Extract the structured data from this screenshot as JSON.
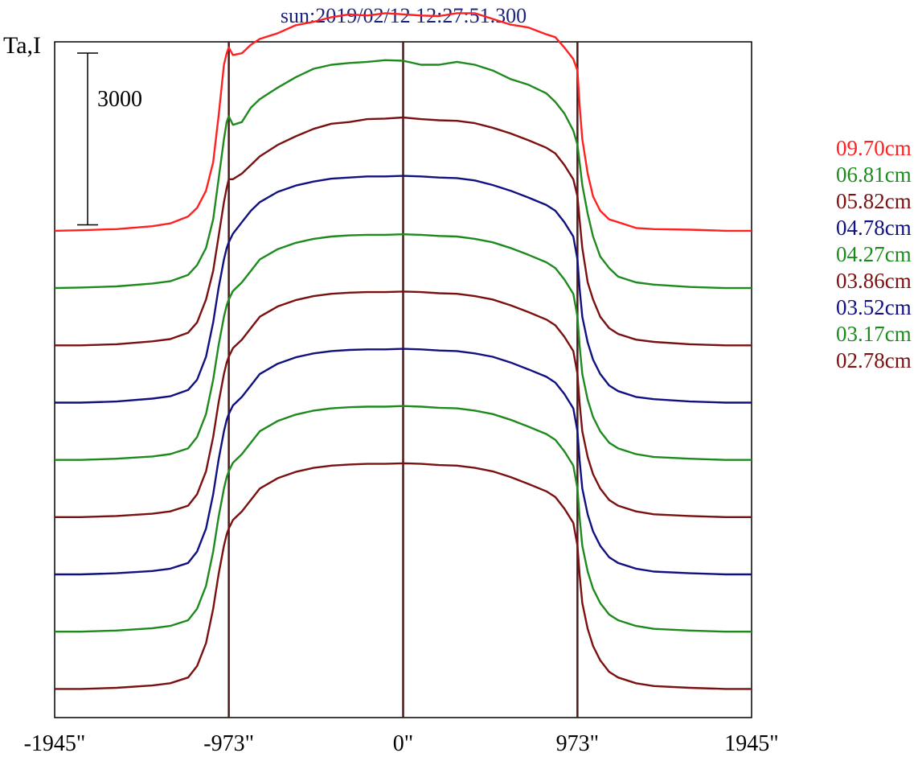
{
  "chart_data": {
    "type": "line",
    "title": "sun:2019/02/12 12:27:51.300",
    "ylabel": "Ta,I",
    "xlabel": "",
    "x_ticks": [
      "-1945\"",
      "-973\"",
      "0\"",
      "973\"",
      "1945\""
    ],
    "x_tick_values": [
      -1945,
      -973,
      0,
      973,
      1945
    ],
    "xlim": [
      -1945,
      1945
    ],
    "limb_lines_at": [
      -973,
      0,
      973
    ],
    "limb_line_color": "#4a1a1a",
    "scale_bar": {
      "label": "3000",
      "value": 3000
    },
    "offset_between_series": 1000,
    "ylim": [
      -500,
      11300
    ],
    "grid": false,
    "legend_position": "right",
    "profile_x": [
      -1945,
      -1800,
      -1600,
      -1400,
      -1300,
      -1200,
      -1150,
      -1100,
      -1060,
      -1030,
      -1000,
      -985,
      -973,
      -950,
      -900,
      -850,
      -800,
      -700,
      -600,
      -500,
      -400,
      -300,
      -200,
      -100,
      0,
      100,
      200,
      300,
      400,
      500,
      600,
      700,
      800,
      850,
      900,
      950,
      973,
      985,
      1000,
      1030,
      1060,
      1100,
      1150,
      1200,
      1300,
      1400,
      1600,
      1800,
      1945
    ],
    "series": [
      {
        "name": "09.70cm",
        "color": "#ff2020",
        "values": [
          8000,
          8010,
          8030,
          8080,
          8130,
          8250,
          8400,
          8700,
          9200,
          10000,
          10900,
          11100,
          11200,
          11070,
          11100,
          11250,
          11350,
          11450,
          11590,
          11650,
          11730,
          11780,
          11760,
          11800,
          11780,
          11760,
          11750,
          11800,
          11800,
          11700,
          11600,
          11550,
          11430,
          11380,
          11200,
          11000,
          10800,
          10200,
          9600,
          9000,
          8600,
          8350,
          8200,
          8150,
          8050,
          8030,
          8020,
          8000,
          8000
        ]
      },
      {
        "name": "06.81cm",
        "color": "#1e8a1e",
        "values": [
          7000,
          7010,
          7030,
          7080,
          7120,
          7230,
          7400,
          7700,
          8200,
          8900,
          9600,
          9900,
          10000,
          9850,
          9900,
          10150,
          10300,
          10500,
          10680,
          10830,
          10900,
          10930,
          10950,
          10980,
          10970,
          10900,
          10900,
          10950,
          10900,
          10800,
          10650,
          10550,
          10400,
          10250,
          10050,
          9750,
          9500,
          9200,
          8800,
          8300,
          7900,
          7550,
          7350,
          7200,
          7100,
          7060,
          7020,
          7000,
          7000
        ]
      },
      {
        "name": "05.82cm",
        "color": "#7a1010",
        "values": [
          6000,
          6000,
          6020,
          6070,
          6110,
          6220,
          6400,
          6800,
          7300,
          7900,
          8500,
          8750,
          8900,
          8900,
          9000,
          9150,
          9300,
          9500,
          9650,
          9780,
          9870,
          9900,
          9950,
          9960,
          9980,
          9950,
          9930,
          9920,
          9880,
          9800,
          9700,
          9580,
          9450,
          9350,
          9150,
          8900,
          8600,
          8200,
          7700,
          7100,
          6800,
          6500,
          6300,
          6200,
          6100,
          6060,
          6020,
          6000,
          6000
        ]
      },
      {
        "name": "04.78cm",
        "color": "#101080",
        "values": [
          5000,
          5000,
          5020,
          5070,
          5110,
          5220,
          5400,
          5800,
          6400,
          7000,
          7500,
          7700,
          7800,
          7950,
          8150,
          8350,
          8500,
          8680,
          8790,
          8860,
          8910,
          8930,
          8950,
          8950,
          8960,
          8950,
          8930,
          8920,
          8880,
          8800,
          8700,
          8580,
          8450,
          8350,
          8150,
          7900,
          7500,
          7000,
          6500,
          6050,
          5750,
          5500,
          5300,
          5200,
          5100,
          5060,
          5020,
          5000,
          5000
        ]
      },
      {
        "name": "04.27cm",
        "color": "#1e8a1e",
        "values": [
          4000,
          4000,
          4020,
          4060,
          4100,
          4200,
          4400,
          4800,
          5400,
          6000,
          6500,
          6700,
          6800,
          6950,
          7100,
          7300,
          7500,
          7680,
          7790,
          7860,
          7900,
          7920,
          7930,
          7930,
          7940,
          7930,
          7910,
          7900,
          7860,
          7800,
          7700,
          7580,
          7450,
          7350,
          7150,
          6900,
          6500,
          6000,
          5500,
          5050,
          4750,
          4500,
          4300,
          4200,
          4100,
          4050,
          4020,
          4000,
          4000
        ]
      },
      {
        "name": "03.86cm",
        "color": "#7a1010",
        "values": [
          3000,
          3000,
          3020,
          3060,
          3100,
          3200,
          3400,
          3800,
          4400,
          5000,
          5500,
          5700,
          5800,
          5950,
          6100,
          6300,
          6500,
          6680,
          6790,
          6860,
          6900,
          6920,
          6930,
          6930,
          6940,
          6930,
          6910,
          6900,
          6860,
          6800,
          6700,
          6580,
          6450,
          6350,
          6150,
          5900,
          5500,
          5000,
          4500,
          4050,
          3750,
          3500,
          3300,
          3200,
          3100,
          3050,
          3020,
          3000,
          3000
        ]
      },
      {
        "name": "03.52cm",
        "color": "#101080",
        "values": [
          2000,
          2000,
          2020,
          2060,
          2100,
          2200,
          2400,
          2800,
          3400,
          4000,
          4500,
          4700,
          4800,
          4950,
          5100,
          5300,
          5500,
          5680,
          5790,
          5860,
          5900,
          5920,
          5930,
          5930,
          5940,
          5930,
          5910,
          5900,
          5860,
          5800,
          5700,
          5580,
          5450,
          5350,
          5150,
          4900,
          4500,
          4000,
          3500,
          3050,
          2750,
          2500,
          2300,
          2200,
          2100,
          2050,
          2020,
          2000,
          2000
        ]
      },
      {
        "name": "03.17cm",
        "color": "#1e8a1e",
        "values": [
          1000,
          1000,
          1020,
          1060,
          1100,
          1200,
          1400,
          1800,
          2400,
          3000,
          3500,
          3700,
          3800,
          3950,
          4100,
          4300,
          4500,
          4680,
          4790,
          4860,
          4900,
          4920,
          4930,
          4930,
          4940,
          4930,
          4910,
          4900,
          4860,
          4800,
          4700,
          4580,
          4450,
          4350,
          4150,
          3900,
          3500,
          3000,
          2500,
          2050,
          1750,
          1500,
          1300,
          1200,
          1100,
          1050,
          1020,
          1000,
          1000
        ]
      },
      {
        "name": "02.78cm",
        "color": "#7a1010",
        "values": [
          0,
          0,
          20,
          60,
          100,
          200,
          400,
          800,
          1400,
          2000,
          2500,
          2700,
          2800,
          2950,
          3100,
          3300,
          3500,
          3680,
          3790,
          3860,
          3900,
          3920,
          3930,
          3930,
          3940,
          3930,
          3910,
          3900,
          3860,
          3800,
          3700,
          3580,
          3450,
          3350,
          3150,
          2900,
          2500,
          2000,
          1500,
          1050,
          750,
          500,
          300,
          200,
          100,
          50,
          20,
          0,
          0
        ]
      }
    ]
  }
}
